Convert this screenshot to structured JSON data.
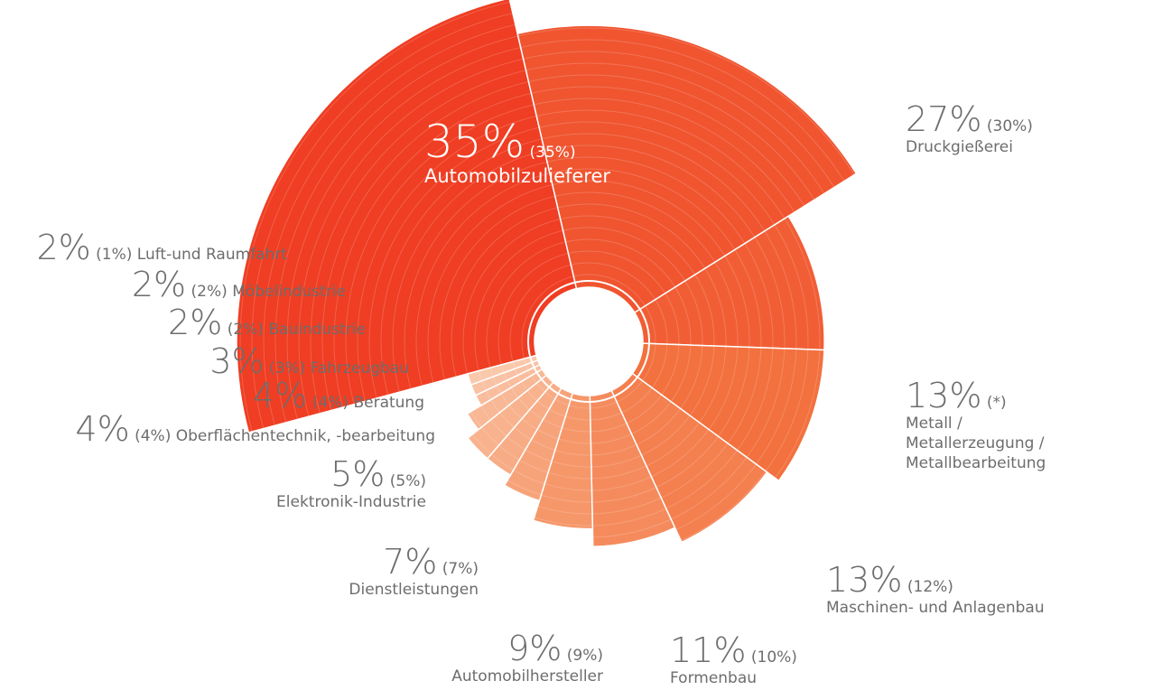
{
  "chart_data": {
    "type": "rose",
    "categories": [
      "Automobilzulieferer",
      "Druckgießerei",
      "Metall / Metallerzeugung / Metallbearbeitung",
      "Maschinen- und Anlagenbau",
      "Formenbau",
      "Automobilhersteller",
      "Dienstleistungen",
      "Elektronik-Industrie",
      "Oberflächentechnik, -bearbeitung",
      "Beratung",
      "Fahrzeugbau",
      "Bauindustrie",
      "Möbelindustrie",
      "Luft-und Raumfahrt"
    ],
    "values": [
      35,
      27,
      13,
      13,
      11,
      9,
      7,
      5,
      4,
      4,
      3,
      2,
      2,
      2
    ],
    "value_labels": [
      "35%",
      "27%",
      "13%",
      "13%",
      "11%",
      "9%",
      "7%",
      "5%",
      "4%",
      "4%",
      "3%",
      "2%",
      "2%",
      "2%"
    ],
    "previous": [
      "(35%)",
      "(30%)",
      "(*)",
      "(12%)",
      "(10%)",
      "(9%)",
      "(7%)",
      "(5%)",
      "(4%)",
      "(4%)",
      "(3%)",
      "(2%)",
      "(2%)",
      "(1%)"
    ],
    "colors": [
      "#ef3e23",
      "#f05530",
      "#f15e35",
      "#f2713f",
      "#f47f4f",
      "#f58b5d",
      "#f6976a",
      "#f7a37a",
      "#f7ac85",
      "#f8b38e",
      "#f8b795",
      "#f9bd9d",
      "#f9c2a4",
      "#fac8ab"
    ]
  }
}
